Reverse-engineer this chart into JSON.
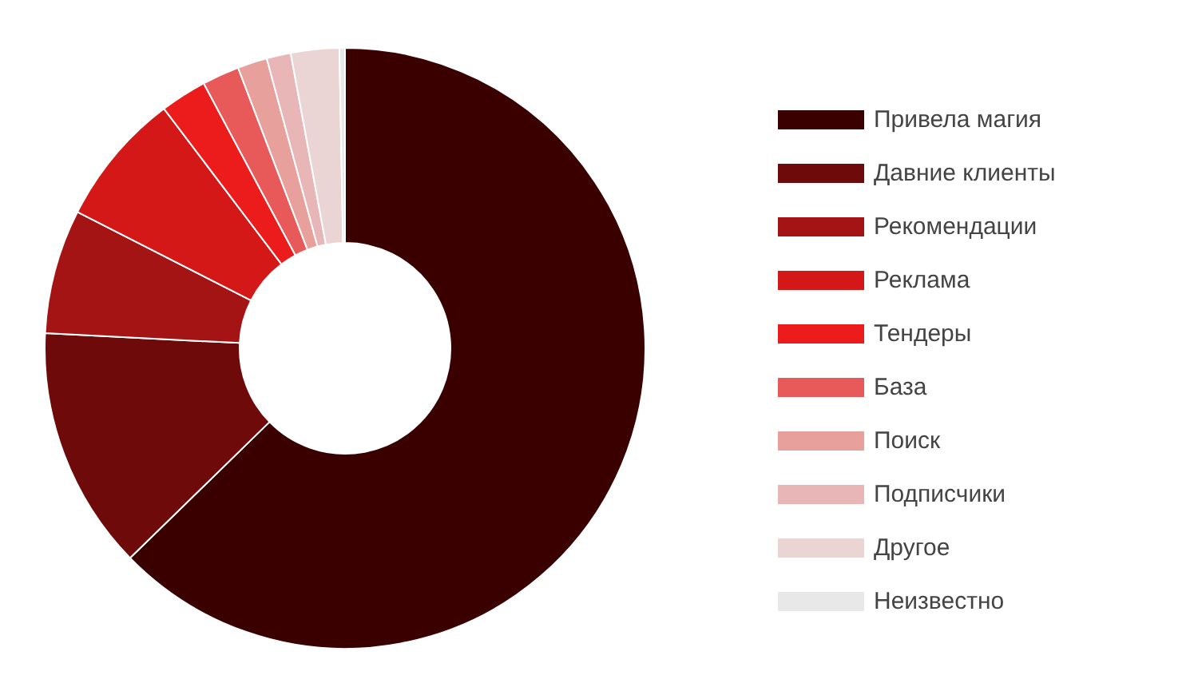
{
  "chart_data": {
    "type": "donut",
    "categories": [
      "Привела магия",
      "Давние клиенты",
      "Рекомендации",
      "Реклама",
      "Тендеры",
      "База",
      "Поиск",
      "Подписчики",
      "Другое",
      "Неизвестно"
    ],
    "values": [
      62.7,
      13.1,
      6.7,
      7.2,
      2.5,
      2.0,
      1.6,
      1.3,
      2.6,
      0.3
    ],
    "colors": [
      "#3a0000",
      "#6e0a0a",
      "#a41414",
      "#d41818",
      "#ec1c1c",
      "#e85a5a",
      "#e8a09c",
      "#e8b6b6",
      "#ebd4d4",
      "#e8e8e8"
    ],
    "legend": "right"
  }
}
